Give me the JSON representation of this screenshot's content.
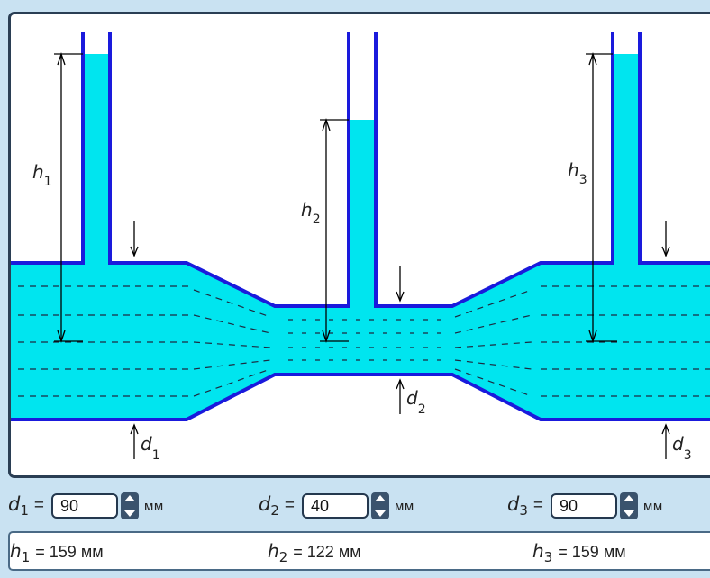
{
  "diagram": {
    "labels": {
      "h1": {
        "base": "h",
        "sub": "1"
      },
      "h2": {
        "base": "h",
        "sub": "2"
      },
      "h3": {
        "base": "h",
        "sub": "3"
      },
      "d1": {
        "base": "d",
        "sub": "1"
      },
      "d2": {
        "base": "d",
        "sub": "2"
      },
      "d3": {
        "base": "d",
        "sub": "3"
      }
    },
    "colors": {
      "water": "#00e5ef",
      "pipe_wall": "#1a1adc",
      "dimension": "#000000",
      "frame": "#2a3e54",
      "background": "#c9e2f2"
    }
  },
  "controls": [
    {
      "var": "d",
      "sub": "1",
      "eq": "=",
      "value": "90",
      "unit": "мм"
    },
    {
      "var": "d",
      "sub": "2",
      "eq": "=",
      "value": "40",
      "unit": "мм"
    },
    {
      "var": "d",
      "sub": "3",
      "eq": "=",
      "value": "90",
      "unit": "мм"
    }
  ],
  "results": [
    {
      "var": "h",
      "sub": "1",
      "eq": "=",
      "value": "159",
      "unit": "мм"
    },
    {
      "var": "h",
      "sub": "2",
      "eq": "=",
      "value": "122",
      "unit": "мм"
    },
    {
      "var": "h",
      "sub": "3",
      "eq": "=",
      "value": "159",
      "unit": "мм"
    }
  ]
}
